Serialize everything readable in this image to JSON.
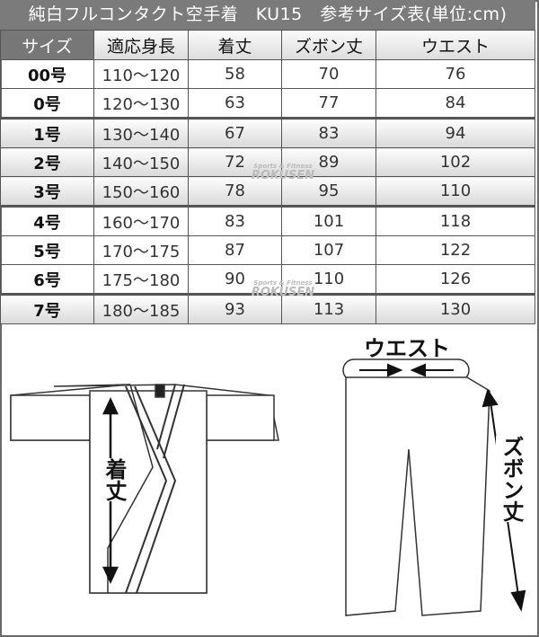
{
  "title": "純白フルコンタクト空手着　KU15　参考サイズ表(単位:cm)",
  "headers": [
    "サイズ",
    "適応身長",
    "着丈",
    "ズボン丈",
    "ウエスト"
  ],
  "rows": [
    [
      "00号",
      "110～120",
      "58",
      "70",
      "76"
    ],
    [
      "0号",
      "120～130",
      "63",
      "77",
      "84"
    ],
    [
      "1号",
      "130～140",
      "67",
      "83",
      "94"
    ],
    [
      "2号",
      "140～150",
      "72",
      "89",
      "102"
    ],
    [
      "3号",
      "150～160",
      "78",
      "95",
      "110"
    ],
    [
      "4号",
      "160～170",
      "83",
      "101",
      "118"
    ],
    [
      "5号",
      "170～175",
      "87",
      "107",
      "122"
    ],
    [
      "6号",
      "175～180",
      "90",
      "110",
      "126"
    ],
    [
      "7号",
      "180～185",
      "93",
      "113",
      "130"
    ]
  ],
  "watermark": {
    "small": "Sports & Fitness",
    "brand": "ROKUSEN"
  },
  "diagram": {
    "jacket_length_label": "着丈",
    "pants_length_label": "ズボン丈",
    "waist_label": "ウエスト"
  }
}
